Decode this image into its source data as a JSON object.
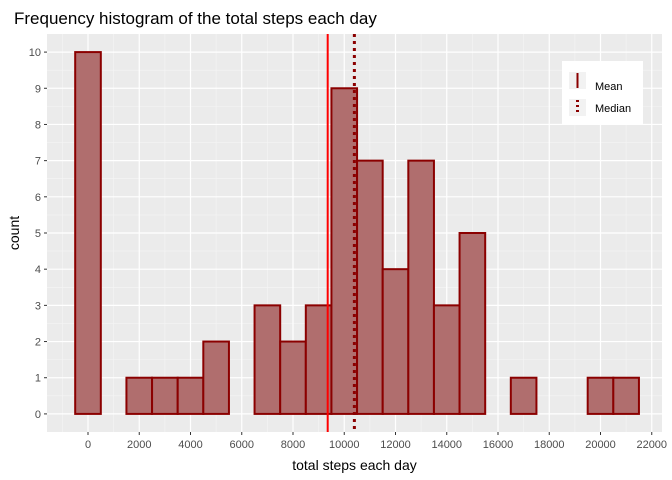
{
  "chart_data": {
    "type": "bar",
    "title": "Frequency histogram of the total steps each day",
    "xlabel": "total steps each day",
    "ylabel": "count",
    "binwidth": 1000,
    "bins": [
      {
        "x": 0,
        "count": 10
      },
      {
        "x": 1000,
        "count": 0
      },
      {
        "x": 2000,
        "count": 1
      },
      {
        "x": 3000,
        "count": 1
      },
      {
        "x": 4000,
        "count": 1
      },
      {
        "x": 5000,
        "count": 2
      },
      {
        "x": 6000,
        "count": 0
      },
      {
        "x": 7000,
        "count": 3
      },
      {
        "x": 8000,
        "count": 2
      },
      {
        "x": 9000,
        "count": 3
      },
      {
        "x": 10000,
        "count": 9
      },
      {
        "x": 11000,
        "count": 7
      },
      {
        "x": 12000,
        "count": 4
      },
      {
        "x": 13000,
        "count": 7
      },
      {
        "x": 14000,
        "count": 3
      },
      {
        "x": 15000,
        "count": 5
      },
      {
        "x": 16000,
        "count": 0
      },
      {
        "x": 17000,
        "count": 1
      },
      {
        "x": 18000,
        "count": 0
      },
      {
        "x": 19000,
        "count": 0
      },
      {
        "x": 20000,
        "count": 1
      },
      {
        "x": 21000,
        "count": 1
      }
    ],
    "xlim": [
      -1600,
      22400
    ],
    "ylim": [
      -0.5,
      10.5
    ],
    "x_ticks": [
      0,
      2000,
      4000,
      6000,
      8000,
      10000,
      12000,
      14000,
      16000,
      18000,
      20000,
      22000
    ],
    "x_tick_labels": [
      "0",
      "2000",
      "4000",
      "6000",
      "8000",
      "10000",
      "12000",
      "14000",
      "16000",
      "18000",
      "20000",
      "22000"
    ],
    "y_ticks": [
      0,
      1,
      2,
      3,
      4,
      5,
      6,
      7,
      8,
      9,
      10
    ],
    "y_tick_labels": [
      "0",
      "1",
      "2",
      "3",
      "4",
      "5",
      "6",
      "7",
      "8",
      "9",
      "10"
    ],
    "mean": 9354,
    "median": 10395,
    "grid": true,
    "legend_position": "top-right",
    "legend": {
      "mean_label": "Mean",
      "median_label": "Median"
    },
    "colors": {
      "bar_fill": "#b06e6e",
      "bar_outline": "#8b0000",
      "mean_line": "#ff0000",
      "median_line": "#8b0000",
      "panel_background": "#ebebeb",
      "grid_major": "#ffffff"
    }
  }
}
